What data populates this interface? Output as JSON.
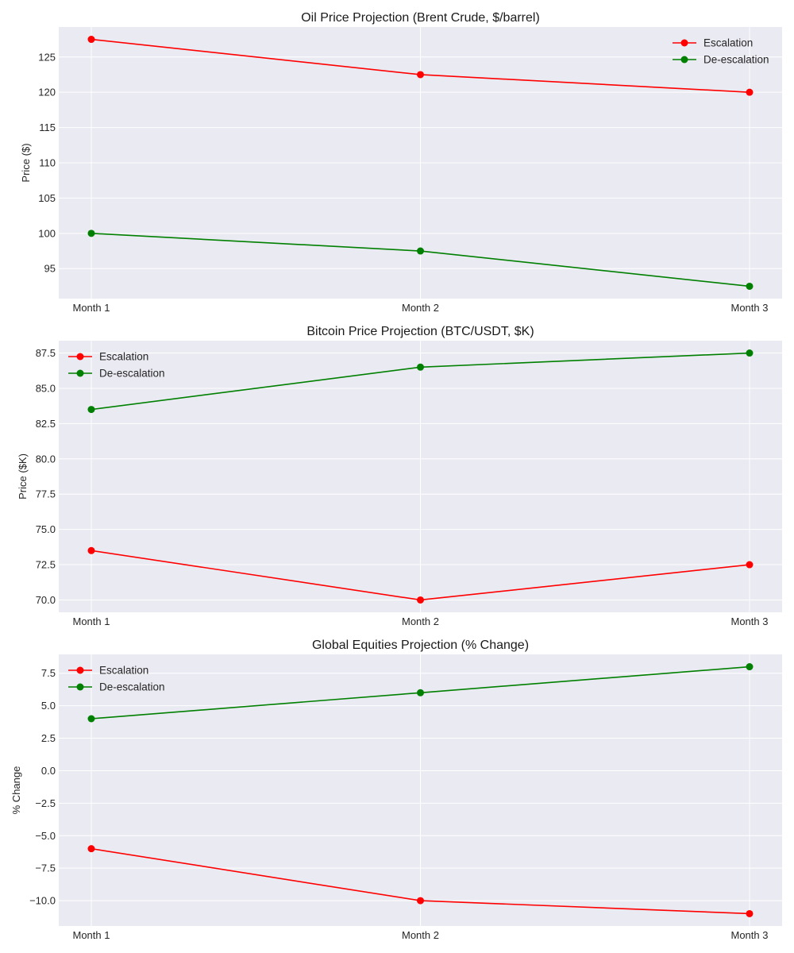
{
  "chart_data": [
    {
      "type": "line",
      "title": "Oil Price Projection (Brent Crude, $/barrel)",
      "xlabel": "",
      "ylabel": "Price ($)",
      "categories": [
        "Month 1",
        "Month 2",
        "Month 3"
      ],
      "ylim": [
        90.75,
        129.25
      ],
      "yticks": [
        95,
        100,
        105,
        110,
        115,
        120,
        125
      ],
      "ytick_labels": [
        "95",
        "100",
        "105",
        "110",
        "115",
        "120",
        "125"
      ],
      "legend_position": "top-right",
      "grid": true,
      "series": [
        {
          "name": "Escalation",
          "color": "#ff0000",
          "values": [
            127.5,
            122.5,
            120
          ]
        },
        {
          "name": "De-escalation",
          "color": "#008000",
          "values": [
            100,
            97.5,
            92.5
          ]
        }
      ]
    },
    {
      "type": "line",
      "title": "Bitcoin Price Projection (BTC/USDT, $K)",
      "xlabel": "",
      "ylabel": "Price ($K)",
      "categories": [
        "Month 1",
        "Month 2",
        "Month 3"
      ],
      "ylim": [
        69.125,
        88.375
      ],
      "yticks": [
        70,
        72.5,
        75,
        77.5,
        80,
        82.5,
        85,
        87.5
      ],
      "ytick_labels": [
        "70.0",
        "72.5",
        "75.0",
        "77.5",
        "80.0",
        "82.5",
        "85.0",
        "87.5"
      ],
      "legend_position": "top-left",
      "grid": true,
      "series": [
        {
          "name": "Escalation",
          "color": "#ff0000",
          "values": [
            73.5,
            70,
            72.5
          ]
        },
        {
          "name": "De-escalation",
          "color": "#008000",
          "values": [
            83.5,
            86.5,
            87.5
          ]
        }
      ]
    },
    {
      "type": "line",
      "title": "Global Equities Projection (% Change)",
      "xlabel": "",
      "ylabel": "% Change",
      "categories": [
        "Month 1",
        "Month 2",
        "Month 3"
      ],
      "ylim": [
        -11.95,
        8.95
      ],
      "yticks": [
        -10,
        -7.5,
        -5,
        -2.5,
        0,
        2.5,
        5,
        7.5
      ],
      "ytick_labels": [
        "−10.0",
        "−7.5",
        "−5.0",
        "−2.5",
        "0.0",
        "2.5",
        "5.0",
        "7.5"
      ],
      "legend_position": "top-left",
      "grid": true,
      "series": [
        {
          "name": "Escalation",
          "color": "#ff0000",
          "values": [
            -6,
            -10,
            -11
          ]
        },
        {
          "name": "De-escalation",
          "color": "#008000",
          "values": [
            4,
            6,
            8
          ]
        }
      ]
    }
  ],
  "style": {
    "plot_bg": "#eaeaf2",
    "grid_color": "#ffffff",
    "text_color": "#262626"
  }
}
